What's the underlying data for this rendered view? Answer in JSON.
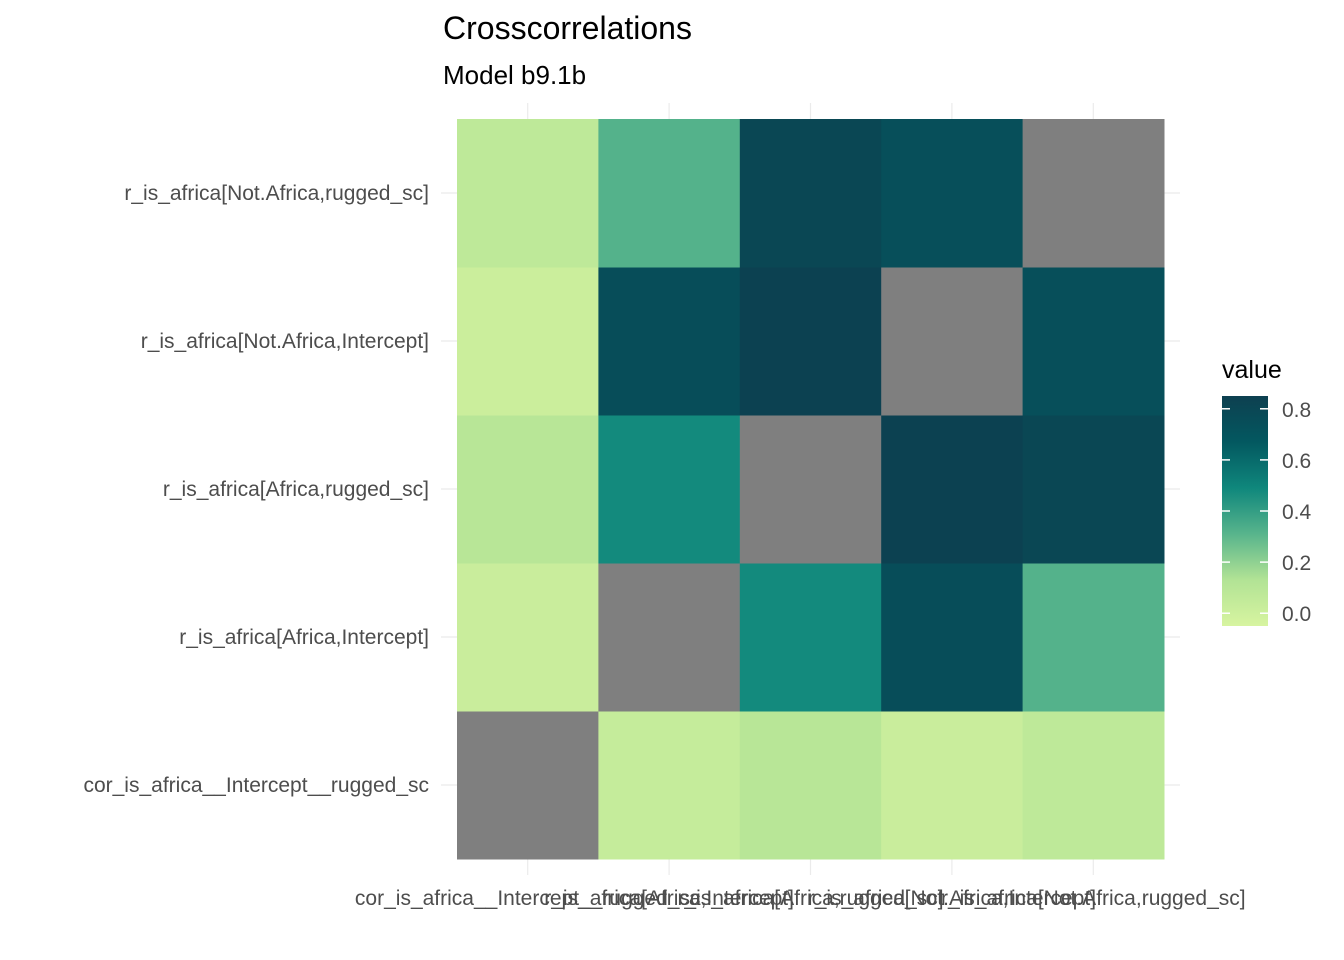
{
  "chart_data": {
    "type": "heatmap",
    "title": "Crosscorrelations",
    "subtitle": "Model b9.1b",
    "x_categories": [
      "cor_is_africa__Intercept__rugged_sc",
      "r_is_africa[Africa,Intercept]",
      "r_is_africa[Africa,rugged_sc]",
      "r_is_africa[Not.Africa,Intercept]",
      "r_is_africa[Not.Africa,rugged_sc]"
    ],
    "y_categories": [
      "cor_is_africa__Intercept__rugged_sc",
      "r_is_africa[Africa,Intercept]",
      "r_is_africa[Africa,rugged_sc]",
      "r_is_africa[Not.Africa,Intercept]",
      "r_is_africa[Not.Africa,rugged_sc]"
    ],
    "values": [
      [
        null,
        0.04,
        0.1,
        0.02,
        0.07
      ],
      [
        0.02,
        null,
        0.48,
        0.75,
        0.32
      ],
      [
        0.1,
        0.48,
        null,
        0.84,
        0.8
      ],
      [
        0.01,
        0.75,
        0.84,
        null,
        0.74
      ],
      [
        0.07,
        0.32,
        0.8,
        0.74,
        null
      ]
    ],
    "na_color": "#7f7f7f",
    "legend": {
      "title": "value",
      "ticks": [
        0.0,
        0.2,
        0.4,
        0.6,
        0.8
      ],
      "tick_labels": [
        "0.0",
        "0.2",
        "0.4",
        "0.6",
        "0.8"
      ],
      "range": [
        -0.05,
        0.85
      ],
      "colors": [
        "#d7f4a0",
        "#b2e395",
        "#58b48c",
        "#0f877c",
        "#035860",
        "#0d4050"
      ],
      "position": "right"
    },
    "grid": true
  }
}
